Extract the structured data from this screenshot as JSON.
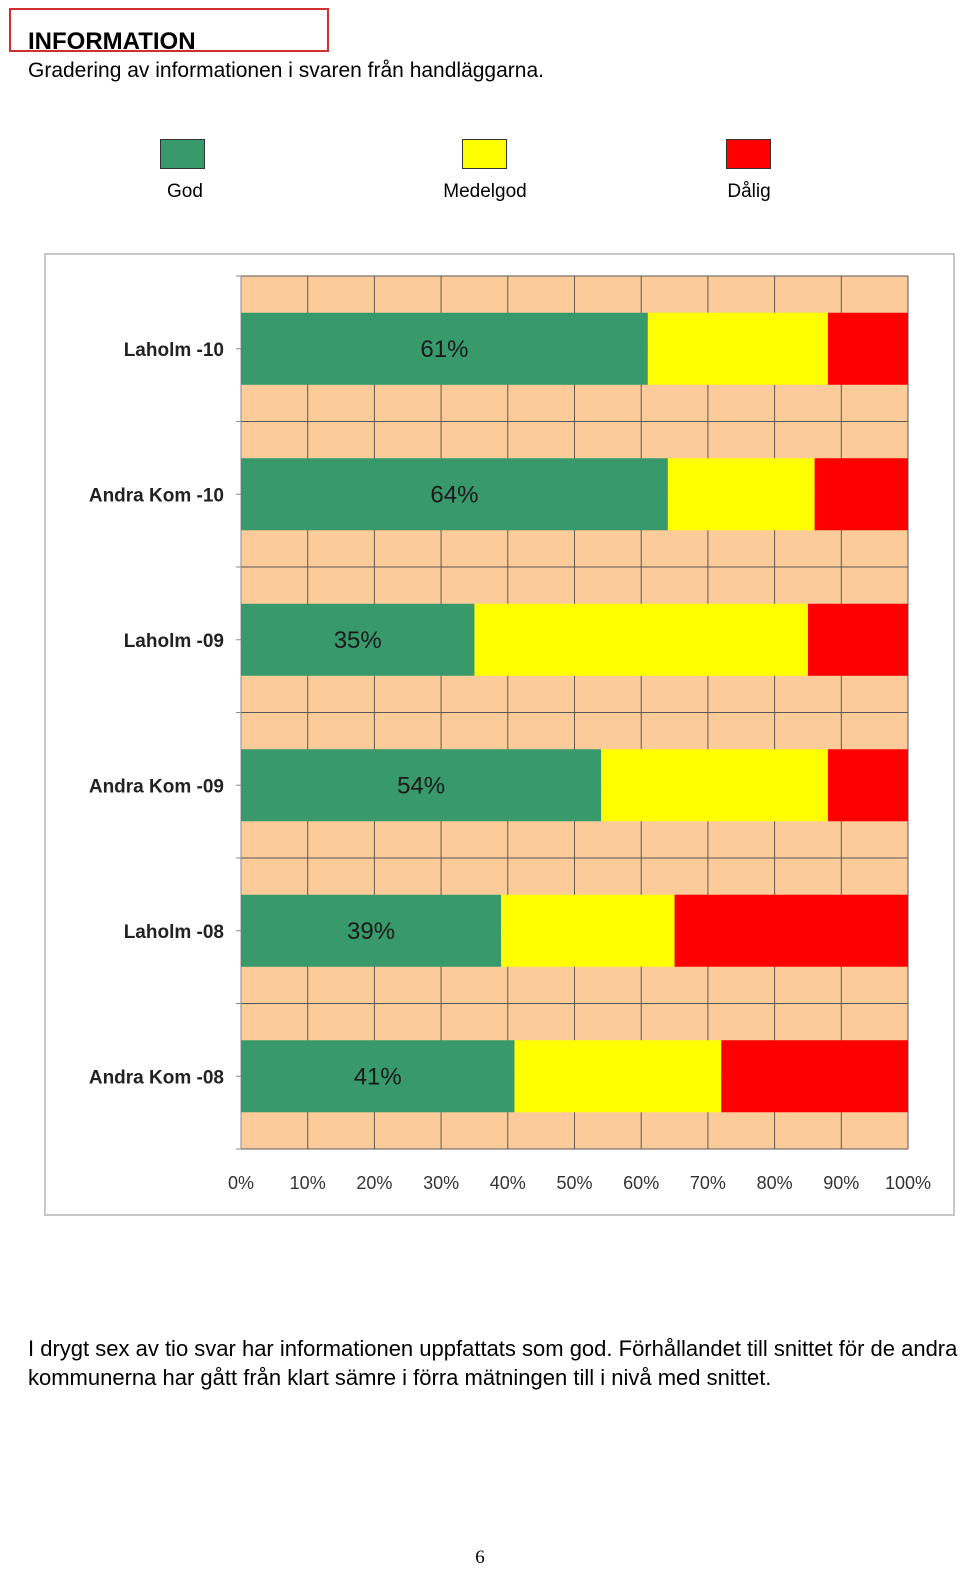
{
  "heading": "INFORMATION",
  "subheading": "Gradering av informationen i svaren från handläggarna.",
  "legend": [
    {
      "label": "God",
      "color": "#38996a"
    },
    {
      "label": "Medelgod",
      "color": "#ffff00"
    },
    {
      "label": "Dålig",
      "color": "#ff0000"
    }
  ],
  "chart_data": {
    "type": "bar",
    "orientation": "horizontal",
    "stacked": true,
    "categories": [
      "Laholm -10",
      "Andra Kom -10",
      "Laholm -09",
      "Andra Kom -09",
      "Laholm -08",
      "Andra Kom -08"
    ],
    "series": [
      {
        "name": "God",
        "color": "#38996a",
        "values": [
          61,
          64,
          35,
          54,
          39,
          41
        ]
      },
      {
        "name": "Medelgod",
        "color": "#ffff00",
        "values": [
          27,
          22,
          50,
          34,
          26,
          31
        ]
      },
      {
        "name": "Dålig",
        "color": "#ff0000",
        "values": [
          12,
          14,
          15,
          12,
          35,
          28
        ]
      }
    ],
    "data_labels": [
      "61%",
      "64%",
      "35%",
      "54%",
      "39%",
      "41%"
    ],
    "x_ticks": [
      "0%",
      "10%",
      "20%",
      "30%",
      "40%",
      "50%",
      "60%",
      "70%",
      "80%",
      "90%",
      "100%"
    ],
    "xlim": [
      0,
      100
    ],
    "plot_background": "#fbcb99",
    "grid": true,
    "legend_position": "top"
  },
  "body_text": "I drygt sex av tio svar har informationen uppfattats som god. Förhållandet till snittet för de andra kommunerna har gått från klart sämre i förra mätningen till i nivå med snittet.",
  "page_number": "6"
}
